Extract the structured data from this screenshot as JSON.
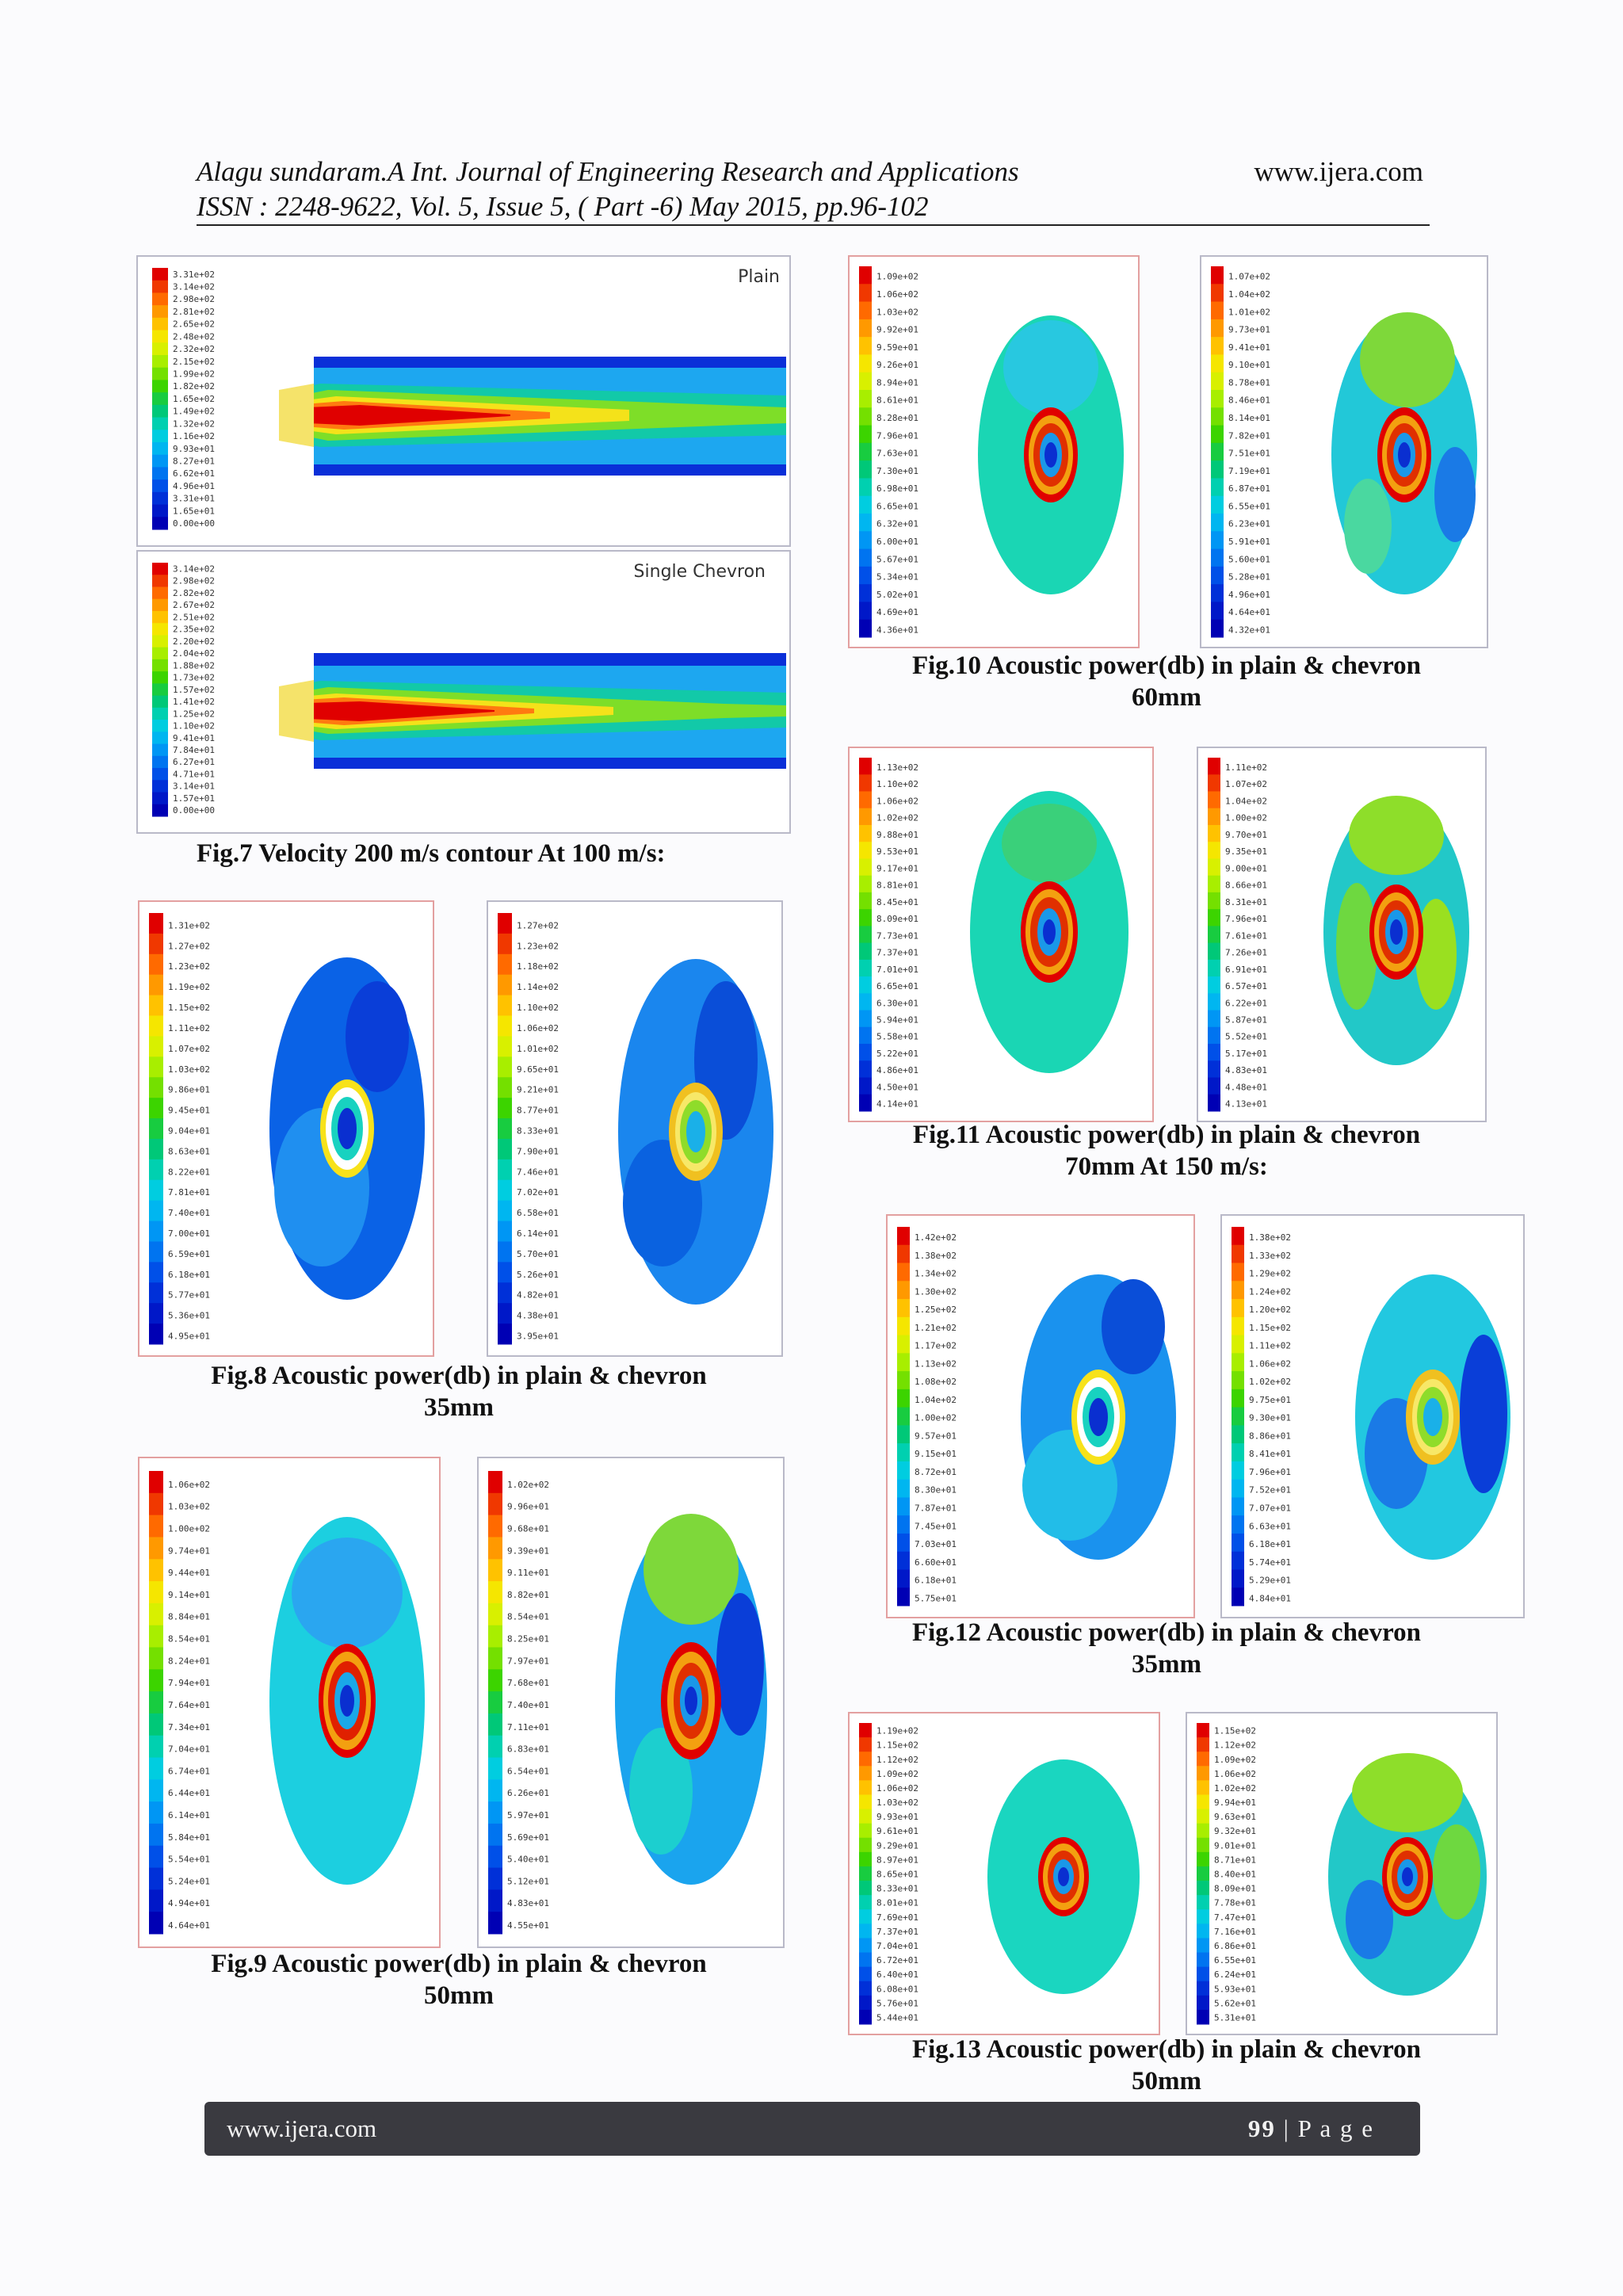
{
  "header": {
    "line1": "Alagu sundaram.A Int. Journal of Engineering Research and Applications",
    "line2": "ISSN : 2248-9622, Vol. 5, Issue 5, ( Part -6) May 2015, pp.96-102",
    "website": "www.ijera.com"
  },
  "fig7": {
    "plain_label": "Plain",
    "chevron_label": "Single Chevron",
    "plain_legend": [
      "3.31e+02",
      "3.14e+02",
      "2.98e+02",
      "2.81e+02",
      "2.65e+02",
      "2.48e+02",
      "2.32e+02",
      "2.15e+02",
      "1.99e+02",
      "1.82e+02",
      "1.65e+02",
      "1.49e+02",
      "1.32e+02",
      "1.16e+02",
      "9.93e+01",
      "8.27e+01",
      "6.62e+01",
      "4.96e+01",
      "3.31e+01",
      "1.65e+01",
      "0.00e+00"
    ],
    "chevron_legend": [
      "3.14e+02",
      "2.98e+02",
      "2.82e+02",
      "2.67e+02",
      "2.51e+02",
      "2.35e+02",
      "2.20e+02",
      "2.04e+02",
      "1.88e+02",
      "1.73e+02",
      "1.57e+02",
      "1.41e+02",
      "1.25e+02",
      "1.10e+02",
      "9.41e+01",
      "7.84e+01",
      "6.27e+01",
      "4.71e+01",
      "3.14e+01",
      "1.57e+01",
      "0.00e+00"
    ],
    "caption": "Fig.7 Velocity 200 m/s contour At 100 m/s:"
  },
  "fig8": {
    "caption_line1": "Fig.8 Acoustic power(db) in plain & chevron",
    "caption_line2": "35mm",
    "legend_plain": [
      "1.31e+02",
      "1.27e+02",
      "1.23e+02",
      "1.19e+02",
      "1.15e+02",
      "1.11e+02",
      "1.07e+02",
      "1.03e+02",
      "9.86e+01",
      "9.45e+01",
      "9.04e+01",
      "8.63e+01",
      "8.22e+01",
      "7.81e+01",
      "7.40e+01",
      "7.00e+01",
      "6.59e+01",
      "6.18e+01",
      "5.77e+01",
      "5.36e+01",
      "4.95e+01"
    ],
    "legend_chevron": [
      "1.27e+02",
      "1.23e+02",
      "1.18e+02",
      "1.14e+02",
      "1.10e+02",
      "1.06e+02",
      "1.01e+02",
      "9.65e+01",
      "9.21e+01",
      "8.77e+01",
      "8.33e+01",
      "7.90e+01",
      "7.46e+01",
      "7.02e+01",
      "6.58e+01",
      "6.14e+01",
      "5.70e+01",
      "5.26e+01",
      "4.82e+01",
      "4.38e+01",
      "3.95e+01"
    ]
  },
  "fig9": {
    "caption_line1": "Fig.9 Acoustic power(db) in plain & chevron",
    "caption_line2": "50mm",
    "legend_plain": [
      "1.06e+02",
      "1.03e+02",
      "1.00e+02",
      "9.74e+01",
      "9.44e+01",
      "9.14e+01",
      "8.84e+01",
      "8.54e+01",
      "8.24e+01",
      "7.94e+01",
      "7.64e+01",
      "7.34e+01",
      "7.04e+01",
      "6.74e+01",
      "6.44e+01",
      "6.14e+01",
      "5.84e+01",
      "5.54e+01",
      "5.24e+01",
      "4.94e+01",
      "4.64e+01"
    ],
    "legend_chevron": [
      "1.02e+02",
      "9.96e+01",
      "9.68e+01",
      "9.39e+01",
      "9.11e+01",
      "8.82e+01",
      "8.54e+01",
      "8.25e+01",
      "7.97e+01",
      "7.68e+01",
      "7.40e+01",
      "7.11e+01",
      "6.83e+01",
      "6.54e+01",
      "6.26e+01",
      "5.97e+01",
      "5.69e+01",
      "5.40e+01",
      "5.12e+01",
      "4.83e+01",
      "4.55e+01"
    ]
  },
  "fig10": {
    "caption_line1": "Fig.10 Acoustic power(db) in plain & chevron",
    "caption_line2": "60mm",
    "legend_plain": [
      "1.09e+02",
      "1.06e+02",
      "1.03e+02",
      "9.92e+01",
      "9.59e+01",
      "9.26e+01",
      "8.94e+01",
      "8.61e+01",
      "8.28e+01",
      "7.96e+01",
      "7.63e+01",
      "7.30e+01",
      "6.98e+01",
      "6.65e+01",
      "6.32e+01",
      "6.00e+01",
      "5.67e+01",
      "5.34e+01",
      "5.02e+01",
      "4.69e+01",
      "4.36e+01"
    ],
    "legend_chevron": [
      "1.07e+02",
      "1.04e+02",
      "1.01e+02",
      "9.73e+01",
      "9.41e+01",
      "9.10e+01",
      "8.78e+01",
      "8.46e+01",
      "8.14e+01",
      "7.82e+01",
      "7.51e+01",
      "7.19e+01",
      "6.87e+01",
      "6.55e+01",
      "6.23e+01",
      "5.91e+01",
      "5.60e+01",
      "5.28e+01",
      "4.96e+01",
      "4.64e+01",
      "4.32e+01"
    ]
  },
  "fig11": {
    "caption_line1": "Fig.11 Acoustic power(db) in plain & chevron",
    "caption_line2": "70mm At 150 m/s:",
    "legend_plain": [
      "1.13e+02",
      "1.10e+02",
      "1.06e+02",
      "1.02e+02",
      "9.88e+01",
      "9.53e+01",
      "9.17e+01",
      "8.81e+01",
      "8.45e+01",
      "8.09e+01",
      "7.73e+01",
      "7.37e+01",
      "7.01e+01",
      "6.65e+01",
      "6.30e+01",
      "5.94e+01",
      "5.58e+01",
      "5.22e+01",
      "4.86e+01",
      "4.50e+01",
      "4.14e+01"
    ],
    "legend_chevron": [
      "1.11e+02",
      "1.07e+02",
      "1.04e+02",
      "1.00e+02",
      "9.70e+01",
      "9.35e+01",
      "9.00e+01",
      "8.66e+01",
      "8.31e+01",
      "7.96e+01",
      "7.61e+01",
      "7.26e+01",
      "6.91e+01",
      "6.57e+01",
      "6.22e+01",
      "5.87e+01",
      "5.52e+01",
      "5.17e+01",
      "4.83e+01",
      "4.48e+01",
      "4.13e+01"
    ]
  },
  "fig12": {
    "caption_line1": "Fig.12 Acoustic power(db) in plain & chevron",
    "caption_line2": "35mm",
    "legend_plain": [
      "1.42e+02",
      "1.38e+02",
      "1.34e+02",
      "1.30e+02",
      "1.25e+02",
      "1.21e+02",
      "1.17e+02",
      "1.13e+02",
      "1.08e+02",
      "1.04e+02",
      "1.00e+02",
      "9.57e+01",
      "9.15e+01",
      "8.72e+01",
      "8.30e+01",
      "7.87e+01",
      "7.45e+01",
      "7.03e+01",
      "6.60e+01",
      "6.18e+01",
      "5.75e+01"
    ],
    "legend_chevron": [
      "1.38e+02",
      "1.33e+02",
      "1.29e+02",
      "1.24e+02",
      "1.20e+02",
      "1.15e+02",
      "1.11e+02",
      "1.06e+02",
      "1.02e+02",
      "9.75e+01",
      "9.30e+01",
      "8.86e+01",
      "8.41e+01",
      "7.96e+01",
      "7.52e+01",
      "7.07e+01",
      "6.63e+01",
      "6.18e+01",
      "5.74e+01",
      "5.29e+01",
      "4.84e+01"
    ]
  },
  "fig13": {
    "caption_line1": "Fig.13 Acoustic power(db) in plain & chevron",
    "caption_line2": "50mm",
    "legend_plain": [
      "1.19e+02",
      "1.15e+02",
      "1.12e+02",
      "1.09e+02",
      "1.06e+02",
      "1.03e+02",
      "9.93e+01",
      "9.61e+01",
      "9.29e+01",
      "8.97e+01",
      "8.65e+01",
      "8.33e+01",
      "8.01e+01",
      "7.69e+01",
      "7.37e+01",
      "7.04e+01",
      "6.72e+01",
      "6.40e+01",
      "6.08e+01",
      "5.76e+01",
      "5.44e+01"
    ],
    "legend_chevron": [
      "1.15e+02",
      "1.12e+02",
      "1.09e+02",
      "1.06e+02",
      "1.02e+02",
      "9.94e+01",
      "9.63e+01",
      "9.32e+01",
      "9.01e+01",
      "8.71e+01",
      "8.40e+01",
      "8.09e+01",
      "7.78e+01",
      "7.47e+01",
      "7.16e+01",
      "6.86e+01",
      "6.55e+01",
      "6.24e+01",
      "5.93e+01",
      "5.62e+01",
      "5.31e+01"
    ]
  },
  "footer": {
    "website": "www.ijera.com",
    "page_number": "99",
    "page_label": " | P a g e"
  },
  "colors": {
    "legend_scale": [
      "#e00000",
      "#f03800",
      "#ff6a00",
      "#ff9900",
      "#ffc200",
      "#f5e600",
      "#d8f000",
      "#a8ee00",
      "#74e000",
      "#3cd400",
      "#18cc40",
      "#00c878",
      "#00d0b0",
      "#00cde0",
      "#00b6f0",
      "#0096f4",
      "#0074f0",
      "#0050e8",
      "#0030d8",
      "#0018c8",
      "#0000b4"
    ],
    "footer_bg": "#3a3a40"
  }
}
